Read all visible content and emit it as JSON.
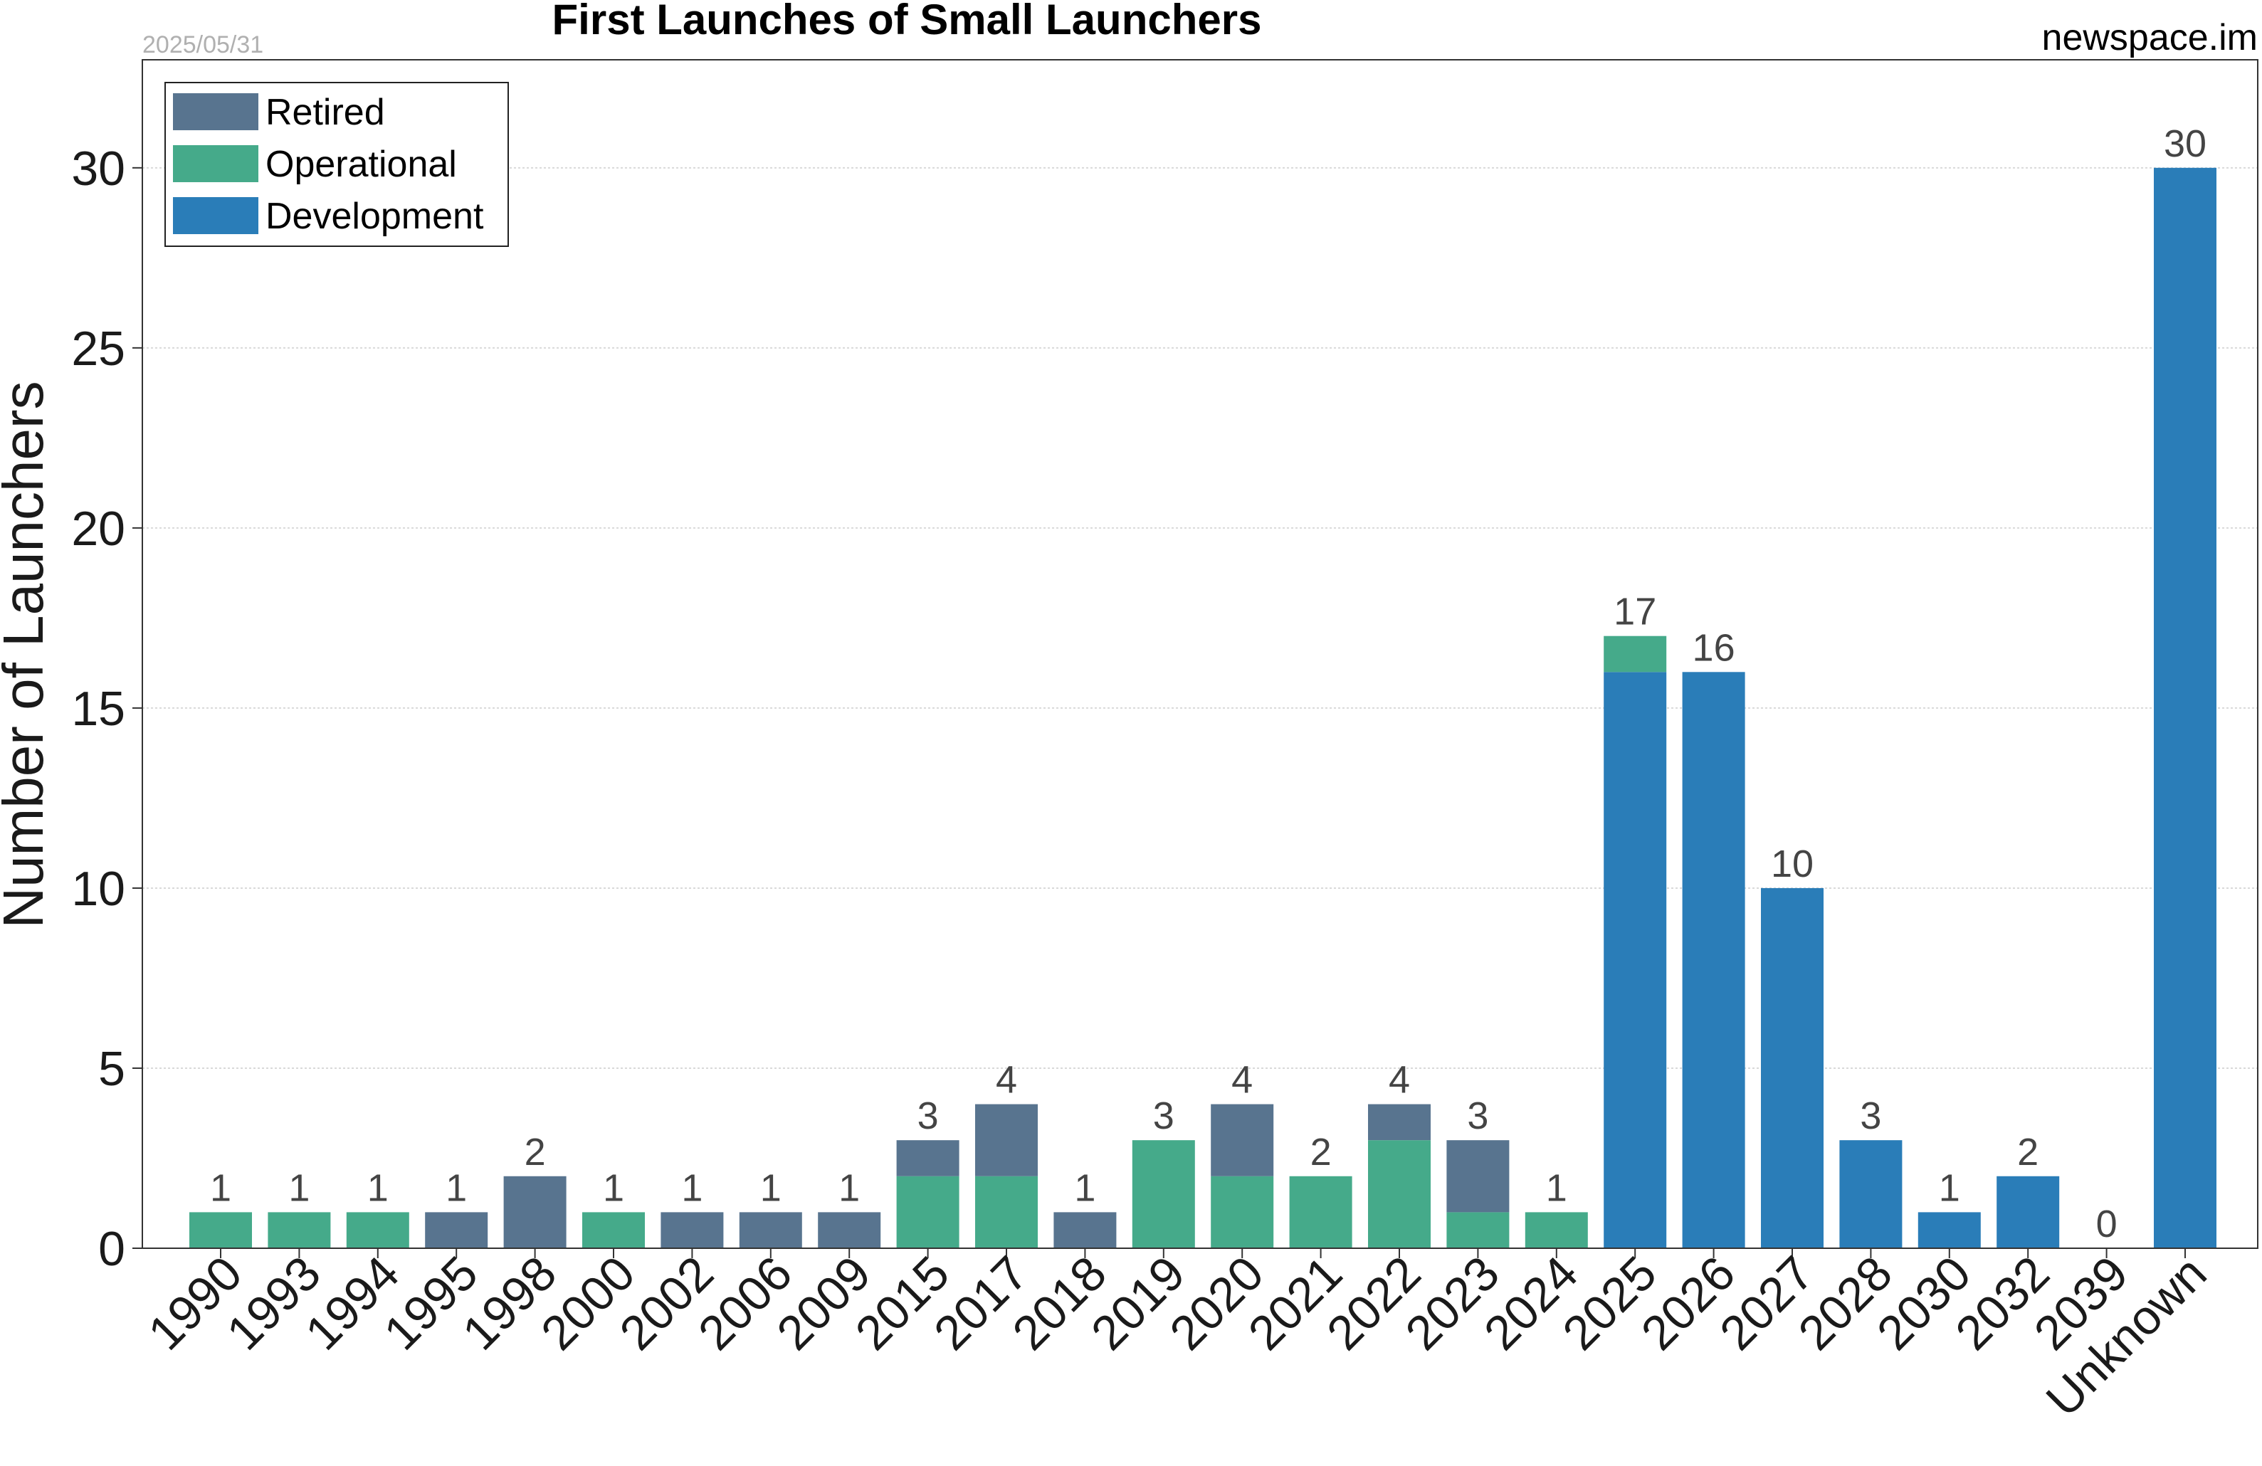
{
  "date_stamp": "2025/05/31",
  "brand": "newspace.im",
  "colors": {
    "Retired": "#58748f",
    "Operational": "#45aa8a",
    "Development": "#2a7db8",
    "grid": "#d9d9d9",
    "axes": "#333333"
  },
  "chart_data": {
    "type": "bar",
    "stacked": true,
    "title": "First Launches of Small Launchers",
    "xlabel": "",
    "ylabel": "Number of Launchers",
    "ylim": [
      0,
      33
    ],
    "yticks": [
      0,
      5,
      10,
      15,
      20,
      25,
      30
    ],
    "grid": true,
    "legend_position": "top-left",
    "categories": [
      "1990",
      "1993",
      "1994",
      "1995",
      "1998",
      "2000",
      "2002",
      "2006",
      "2009",
      "2015",
      "2017",
      "2018",
      "2019",
      "2020",
      "2021",
      "2022",
      "2023",
      "2024",
      "2025",
      "2026",
      "2027",
      "2028",
      "2030",
      "2032",
      "2039",
      "Unknown"
    ],
    "series": [
      {
        "name": "Development",
        "values": [
          0,
          0,
          0,
          0,
          0,
          0,
          0,
          0,
          0,
          0,
          0,
          0,
          0,
          0,
          0,
          0,
          0,
          0,
          16,
          16,
          10,
          3,
          1,
          2,
          0,
          30
        ]
      },
      {
        "name": "Operational",
        "values": [
          1,
          1,
          1,
          0,
          0,
          1,
          0,
          0,
          0,
          2,
          2,
          0,
          3,
          2,
          2,
          3,
          1,
          1,
          1,
          0,
          0,
          0,
          0,
          0,
          0,
          0
        ]
      },
      {
        "name": "Retired",
        "values": [
          0,
          0,
          0,
          1,
          2,
          0,
          1,
          1,
          1,
          1,
          2,
          1,
          0,
          2,
          0,
          1,
          2,
          0,
          0,
          0,
          0,
          0,
          0,
          0,
          0,
          0
        ]
      }
    ],
    "totals": [
      1,
      1,
      1,
      1,
      2,
      1,
      1,
      1,
      1,
      3,
      4,
      1,
      3,
      4,
      2,
      4,
      3,
      1,
      17,
      16,
      10,
      3,
      1,
      2,
      0,
      30
    ],
    "legend": [
      "Retired",
      "Operational",
      "Development"
    ]
  }
}
